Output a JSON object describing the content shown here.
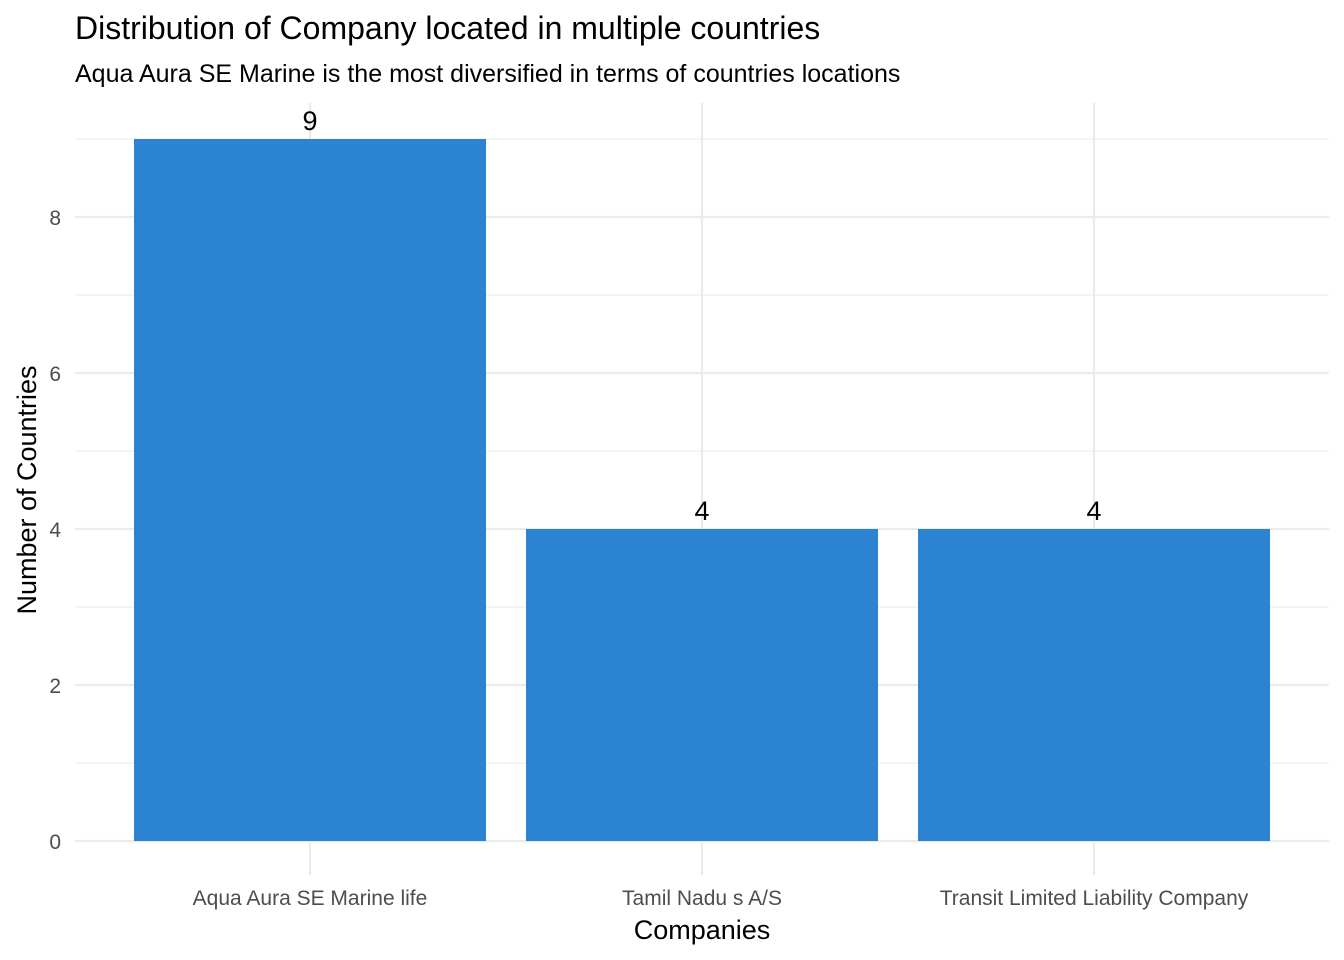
{
  "chart_data": {
    "type": "bar",
    "title": "Distribution of Company located in multiple countries",
    "subtitle": "Aqua Aura SE Marine is the most diversified in terms of countries locations",
    "xlabel": "Companies",
    "ylabel": "Number of Countries",
    "categories": [
      "Aqua Aura SE Marine life",
      "Tamil Nadu s A/S",
      "Transit Limited Liability Company"
    ],
    "values": [
      9,
      4,
      4
    ],
    "data_labels": [
      "9",
      "4",
      "4"
    ],
    "ylim": [
      0,
      9.45
    ],
    "yticks": [
      0,
      2,
      4,
      6,
      8
    ],
    "ytick_labels": [
      "0",
      "2",
      "4",
      "6",
      "8"
    ],
    "grid": true,
    "bar_color": "#2b83d1",
    "grid_color": "#ebebeb"
  }
}
